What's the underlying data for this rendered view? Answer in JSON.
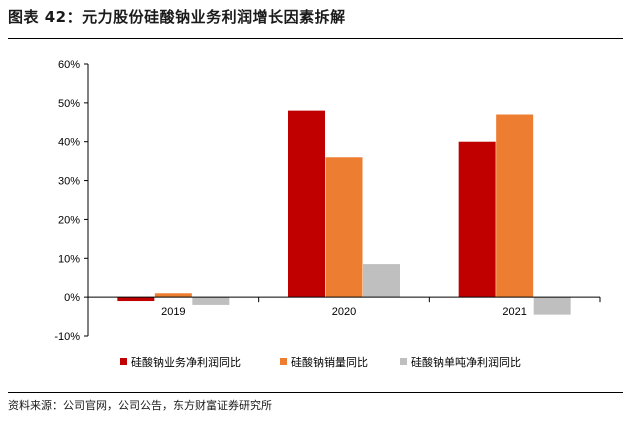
{
  "title": "图表 42：元力股份硅酸钠业务利润增长因素拆解",
  "source": "资料来源：公司官网，公司公告，东方财富证券研究所",
  "colors": {
    "series1": "#C00000",
    "series2": "#ED7D31",
    "series3": "#BFBFBF",
    "axis": "#000000"
  },
  "chart_data": {
    "type": "bar",
    "categories": [
      "2019",
      "2020",
      "2021"
    ],
    "series": [
      {
        "name": "硅酸钠业务净利润同比",
        "values": [
          -1,
          48,
          40
        ]
      },
      {
        "name": "硅酸钠销量同比",
        "values": [
          1,
          36,
          47
        ]
      },
      {
        "name": "硅酸钠单吨净利润同比",
        "values": [
          -2,
          8.5,
          -4.5
        ]
      }
    ],
    "ylim": [
      -10,
      60
    ],
    "yticks": [
      "-10%",
      "0%",
      "10%",
      "20%",
      "30%",
      "40%",
      "50%",
      "60%"
    ],
    "ytick_values": [
      -10,
      0,
      10,
      20,
      30,
      40,
      50,
      60
    ],
    "legend_position": "bottom",
    "grid": false
  }
}
